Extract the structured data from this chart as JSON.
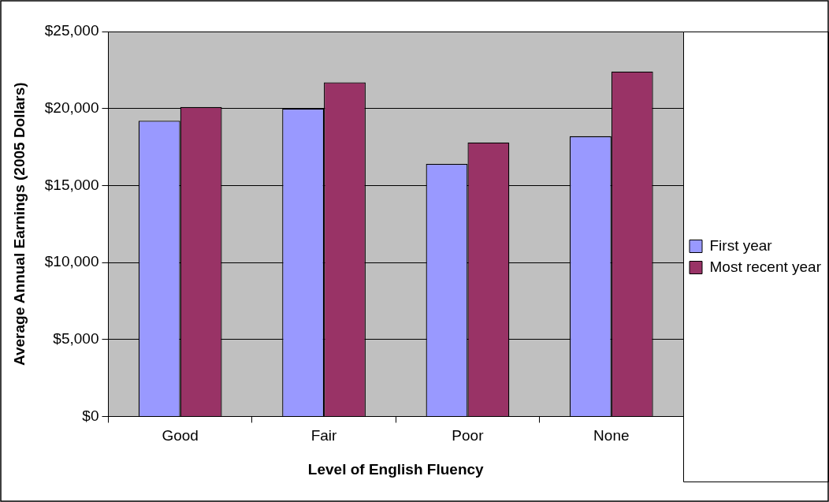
{
  "chart_data": {
    "type": "bar",
    "xlabel": "Level of English Fluency",
    "ylabel": "Average Annual Earnings (2005 Dollars)",
    "categories": [
      "Good",
      "Fair",
      "Poor",
      "None"
    ],
    "series": [
      {
        "name": "First year",
        "color": "#9999ff",
        "values": [
          19200,
          20000,
          16400,
          18200
        ]
      },
      {
        "name": "Most recent year",
        "color": "#993366",
        "values": [
          20100,
          21700,
          17800,
          22400
        ]
      }
    ],
    "ylim": [
      0,
      25000
    ],
    "yticks": [
      {
        "value": 0,
        "label": "$0"
      },
      {
        "value": 5000,
        "label": "$5,000"
      },
      {
        "value": 10000,
        "label": "$10,000"
      },
      {
        "value": 15000,
        "label": "$15,000"
      },
      {
        "value": 20000,
        "label": "$20,000"
      },
      {
        "value": 25000,
        "label": "$25,000"
      }
    ],
    "grid": "y",
    "legend": "right"
  }
}
